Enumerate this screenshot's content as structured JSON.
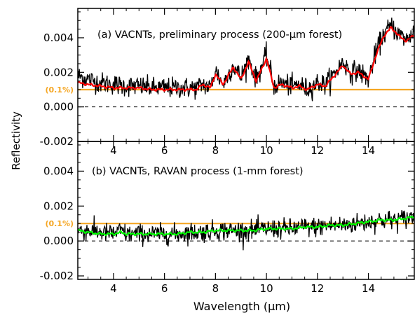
{
  "figure": {
    "ylabel": "Reflectivity",
    "xlabel": "Wavelength (μm)",
    "ref_label": "(0.1%)",
    "ref_color": "#F5A623",
    "data_color": "#000000"
  },
  "chart_data": [
    {
      "type": "line",
      "title": "(a) VACNTs, preliminary process (200-μm forest)",
      "xlim": [
        2.6,
        15.8
      ],
      "ylim": [
        -0.002,
        0.0057
      ],
      "xticks": [
        4,
        6,
        8,
        10,
        12,
        14
      ],
      "xtick_labels": [
        "4",
        "6",
        "8",
        "10",
        "12",
        "14"
      ],
      "yticks": [
        -0.002,
        0.0,
        0.002,
        0.004
      ],
      "ytick_labels": [
        "-0.002",
        "0.000",
        "0.002",
        "0.004"
      ],
      "reference_lines": [
        {
          "value": 0.001,
          "label": "(0.1%)",
          "style": "solid",
          "color": "#F5A623"
        },
        {
          "value": 0.0,
          "style": "dashed",
          "color": "#000000"
        }
      ],
      "series": [
        {
          "role": "measured",
          "color": "#000000",
          "noise": 0.0003,
          "x_range": [
            2.6,
            15.8
          ],
          "x": [
            2.6,
            3.0,
            3.5,
            4.0,
            4.5,
            5.0,
            5.5,
            6.0,
            6.5,
            7.0,
            7.25,
            7.5,
            7.8,
            8.0,
            8.3,
            8.7,
            9.0,
            9.3,
            9.6,
            10.0,
            10.3,
            10.6,
            11.0,
            11.3,
            11.6,
            12.0,
            12.3,
            12.6,
            13.0,
            13.3,
            13.6,
            14.0,
            14.3,
            14.6,
            14.9,
            15.2,
            15.5,
            15.8
          ],
          "y": [
            0.0018,
            0.0016,
            0.0014,
            0.0013,
            0.0012,
            0.0012,
            0.0011,
            0.0011,
            0.0011,
            0.0011,
            0.0011,
            0.0013,
            0.0011,
            0.0021,
            0.0013,
            0.0024,
            0.0017,
            0.0028,
            0.0016,
            0.003,
            0.0012,
            0.0014,
            0.0012,
            0.0013,
            0.001,
            0.0014,
            0.0013,
            0.0018,
            0.0026,
            0.002,
            0.0021,
            0.0016,
            0.0032,
            0.0042,
            0.0047,
            0.0042,
            0.0039,
            0.0044
          ]
        },
        {
          "role": "smoothed",
          "color": "#FF0000",
          "x_range": [
            2.6,
            15.8
          ],
          "x": [
            2.6,
            3.0,
            3.5,
            4.0,
            4.5,
            5.0,
            5.5,
            6.0,
            6.5,
            7.0,
            7.25,
            7.5,
            7.8,
            8.0,
            8.3,
            8.7,
            9.0,
            9.3,
            9.6,
            10.0,
            10.3,
            10.6,
            11.0,
            11.3,
            11.6,
            12.0,
            12.3,
            12.6,
            13.0,
            13.3,
            13.6,
            14.0,
            14.3,
            14.6,
            14.9,
            15.2,
            15.5,
            15.8
          ],
          "y": [
            0.0014,
            0.0013,
            0.0012,
            0.0011,
            0.0011,
            0.0011,
            0.001,
            0.001,
            0.001,
            0.001,
            0.001,
            0.0013,
            0.0011,
            0.0019,
            0.0013,
            0.0023,
            0.0016,
            0.0026,
            0.0015,
            0.0028,
            0.0011,
            0.0013,
            0.0011,
            0.0012,
            0.001,
            0.0013,
            0.0012,
            0.0017,
            0.0024,
            0.0019,
            0.002,
            0.0016,
            0.003,
            0.0041,
            0.0046,
            0.0041,
            0.0038,
            0.0042
          ]
        }
      ]
    },
    {
      "type": "line",
      "title": "(b) VACNTs, RAVAN process (1-mm forest)",
      "xlim": [
        2.6,
        15.8
      ],
      "ylim": [
        -0.0022,
        0.0057
      ],
      "xticks": [
        4,
        6,
        8,
        10,
        12,
        14
      ],
      "xtick_labels": [
        "4",
        "6",
        "8",
        "10",
        "12",
        "14"
      ],
      "yticks": [
        -0.002,
        0.0,
        0.002,
        0.004
      ],
      "ytick_labels": [
        "-0.002",
        "0.000",
        "0.002",
        "0.004"
      ],
      "reference_lines": [
        {
          "value": 0.001,
          "label": "(0.1%)",
          "style": "solid",
          "color": "#F5A623"
        },
        {
          "value": 0.0,
          "style": "dashed",
          "color": "#000000"
        }
      ],
      "series": [
        {
          "role": "measured",
          "color": "#000000",
          "noise": 0.00028,
          "x_range": [
            2.6,
            15.8
          ],
          "x": [
            2.6,
            3.0,
            3.5,
            4.0,
            4.3,
            4.5,
            5.0,
            5.5,
            6.0,
            6.5,
            7.0,
            7.5,
            8.0,
            8.5,
            9.0,
            9.5,
            10.0,
            10.5,
            11.0,
            11.5,
            12.0,
            12.5,
            13.0,
            13.5,
            14.0,
            14.5,
            15.0,
            15.5,
            15.8
          ],
          "y": [
            0.0006,
            0.0006,
            0.0005,
            0.0004,
            0.0006,
            0.0004,
            0.0004,
            0.0004,
            0.0004,
            0.0004,
            0.0005,
            0.0005,
            0.0006,
            0.0006,
            0.0006,
            0.0006,
            0.0007,
            0.0007,
            0.0007,
            0.0008,
            0.0008,
            0.0009,
            0.0009,
            0.001,
            0.0011,
            0.0012,
            0.0012,
            0.0013,
            0.0014
          ]
        },
        {
          "role": "smoothed",
          "color": "#00FF00",
          "x_range": [
            2.6,
            15.8
          ],
          "x": [
            2.6,
            3.0,
            3.5,
            4.0,
            4.3,
            4.5,
            5.0,
            5.5,
            6.0,
            6.5,
            7.0,
            7.5,
            8.0,
            8.5,
            9.0,
            9.5,
            10.0,
            10.5,
            11.0,
            11.5,
            12.0,
            12.5,
            13.0,
            13.5,
            14.0,
            14.5,
            15.0,
            15.5,
            15.8
          ],
          "y": [
            0.0006,
            0.0005,
            0.0004,
            0.0004,
            0.0005,
            0.0004,
            0.0004,
            0.0004,
            0.0004,
            0.0004,
            0.0005,
            0.0005,
            0.0006,
            0.0006,
            0.0006,
            0.0006,
            0.0007,
            0.0007,
            0.0007,
            0.0008,
            0.0008,
            0.0009,
            0.0009,
            0.001,
            0.0011,
            0.0012,
            0.0012,
            0.0013,
            0.0014
          ]
        }
      ]
    }
  ]
}
